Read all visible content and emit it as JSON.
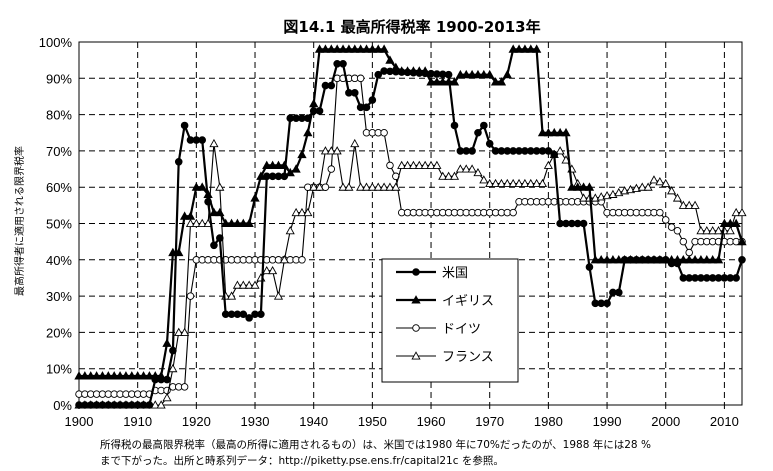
{
  "chart_data": {
    "type": "line",
    "title": "図14.1 最高所得税率 1900-2013年",
    "ylabel": "最高所得者に適用される限界税率",
    "xlim": [
      1900,
      2013
    ],
    "ylim": [
      0,
      100
    ],
    "x_ticks": [
      1900,
      1910,
      1920,
      1930,
      1940,
      1950,
      1960,
      1970,
      1980,
      1990,
      2000,
      2010
    ],
    "y_ticks": [
      "0%",
      "10%",
      "20%",
      "30%",
      "40%",
      "50%",
      "60%",
      "70%",
      "80%",
      "90%",
      "100%"
    ],
    "grid": "dashed",
    "legend_position": "center-right",
    "series": [
      {
        "name": "米国",
        "marker": "filled-circle",
        "color": "#000000",
        "points": [
          [
            1900,
            0
          ],
          [
            1912,
            0
          ],
          [
            1913,
            7
          ],
          [
            1915,
            7
          ],
          [
            1916,
            15
          ],
          [
            1917,
            67
          ],
          [
            1918,
            77
          ],
          [
            1919,
            73
          ],
          [
            1921,
            73
          ],
          [
            1922,
            56
          ],
          [
            1923,
            44
          ],
          [
            1924,
            46
          ],
          [
            1925,
            25
          ],
          [
            1928,
            25
          ],
          [
            1929,
            24
          ],
          [
            1930,
            25
          ],
          [
            1931,
            25
          ],
          [
            1932,
            63
          ],
          [
            1935,
            63
          ],
          [
            1936,
            79
          ],
          [
            1939,
            79
          ],
          [
            1940,
            81
          ],
          [
            1941,
            81
          ],
          [
            1942,
            88
          ],
          [
            1943,
            88
          ],
          [
            1944,
            94
          ],
          [
            1945,
            94
          ],
          [
            1946,
            86
          ],
          [
            1947,
            86
          ],
          [
            1948,
            82
          ],
          [
            1949,
            82
          ],
          [
            1950,
            84
          ],
          [
            1951,
            91
          ],
          [
            1952,
            92
          ],
          [
            1963,
            91
          ],
          [
            1964,
            77
          ],
          [
            1965,
            70
          ],
          [
            1967,
            70
          ],
          [
            1968,
            75
          ],
          [
            1969,
            77
          ],
          [
            1970,
            72
          ],
          [
            1971,
            70
          ],
          [
            1980,
            70
          ],
          [
            1981,
            69
          ],
          [
            1982,
            50
          ],
          [
            1986,
            50
          ],
          [
            1987,
            38
          ],
          [
            1988,
            28
          ],
          [
            1990,
            28
          ],
          [
            1991,
            31
          ],
          [
            1992,
            31
          ],
          [
            1993,
            40
          ],
          [
            2000,
            40
          ],
          [
            2001,
            39
          ],
          [
            2002,
            39
          ],
          [
            2003,
            35
          ],
          [
            2012,
            35
          ],
          [
            2013,
            40
          ]
        ]
      },
      {
        "name": "イギリス",
        "marker": "filled-triangle",
        "color": "#000000",
        "points": [
          [
            1900,
            8
          ],
          [
            1909,
            8
          ],
          [
            1910,
            8
          ],
          [
            1913,
            8
          ],
          [
            1914,
            8
          ],
          [
            1915,
            17
          ],
          [
            1916,
            42
          ],
          [
            1917,
            42
          ],
          [
            1918,
            52
          ],
          [
            1919,
            52
          ],
          [
            1920,
            60
          ],
          [
            1921,
            60
          ],
          [
            1922,
            58
          ],
          [
            1923,
            53
          ],
          [
            1924,
            53
          ],
          [
            1925,
            50
          ],
          [
            1929,
            50
          ],
          [
            1930,
            57
          ],
          [
            1931,
            63
          ],
          [
            1932,
            66
          ],
          [
            1935,
            66
          ],
          [
            1936,
            64
          ],
          [
            1937,
            65
          ],
          [
            1938,
            69
          ],
          [
            1939,
            75
          ],
          [
            1940,
            83
          ],
          [
            1941,
            98
          ],
          [
            1952,
            98
          ],
          [
            1953,
            95
          ],
          [
            1954,
            93
          ],
          [
            1955,
            92
          ],
          [
            1959,
            92
          ],
          [
            1960,
            89
          ],
          [
            1964,
            89
          ],
          [
            1965,
            91
          ],
          [
            1970,
            91
          ],
          [
            1971,
            89
          ],
          [
            1972,
            89
          ],
          [
            1973,
            91
          ],
          [
            1974,
            98
          ],
          [
            1978,
            98
          ],
          [
            1979,
            75
          ],
          [
            1983,
            75
          ],
          [
            1984,
            60
          ],
          [
            1987,
            60
          ],
          [
            1988,
            40
          ],
          [
            2009,
            40
          ],
          [
            2010,
            50
          ],
          [
            2012,
            50
          ],
          [
            2013,
            45
          ]
        ]
      },
      {
        "name": "ドイツ",
        "marker": "open-circle",
        "color": "#000000",
        "points": [
          [
            1900,
            3
          ],
          [
            1912,
            3
          ],
          [
            1913,
            4
          ],
          [
            1915,
            4
          ],
          [
            1916,
            5
          ],
          [
            1917,
            5
          ],
          [
            1918,
            5
          ],
          [
            1919,
            30
          ],
          [
            1920,
            40
          ],
          [
            1938,
            40
          ],
          [
            1939,
            60
          ],
          [
            1942,
            60
          ],
          [
            1943,
            65
          ],
          [
            1944,
            90
          ],
          [
            1948,
            90
          ],
          [
            1949,
            75
          ],
          [
            1952,
            75
          ],
          [
            1953,
            66
          ],
          [
            1954,
            63
          ],
          [
            1955,
            53
          ],
          [
            1974,
            53
          ],
          [
            1975,
            56
          ],
          [
            1989,
            56
          ],
          [
            1990,
            53
          ],
          [
            1999,
            53
          ],
          [
            2000,
            51
          ],
          [
            2001,
            49
          ],
          [
            2002,
            48
          ],
          [
            2003,
            45
          ],
          [
            2004,
            42
          ],
          [
            2005,
            45
          ],
          [
            2013,
            45
          ]
        ]
      },
      {
        "name": "フランス",
        "marker": "open-triangle",
        "color": "#000000",
        "points": [
          [
            1900,
            0
          ],
          [
            1914,
            0
          ],
          [
            1915,
            2
          ],
          [
            1916,
            10
          ],
          [
            1917,
            20
          ],
          [
            1918,
            20
          ],
          [
            1919,
            50
          ],
          [
            1920,
            50
          ],
          [
            1921,
            50
          ],
          [
            1922,
            50
          ],
          [
            1923,
            72
          ],
          [
            1924,
            60
          ],
          [
            1925,
            30
          ],
          [
            1926,
            30
          ],
          [
            1927,
            33
          ],
          [
            1930,
            33
          ],
          [
            1932,
            37
          ],
          [
            1933,
            37
          ],
          [
            1934,
            30
          ],
          [
            1935,
            40
          ],
          [
            1936,
            48
          ],
          [
            1937,
            53
          ],
          [
            1939,
            53
          ],
          [
            1940,
            60
          ],
          [
            1941,
            60
          ],
          [
            1942,
            70
          ],
          [
            1944,
            70
          ],
          [
            1945,
            60
          ],
          [
            1946,
            60
          ],
          [
            1947,
            72
          ],
          [
            1948,
            60
          ],
          [
            1954,
            60
          ],
          [
            1955,
            66
          ],
          [
            1961,
            66
          ],
          [
            1962,
            63
          ],
          [
            1964,
            63
          ],
          [
            1965,
            65
          ],
          [
            1967,
            65
          ],
          [
            1968,
            64
          ],
          [
            1969,
            62
          ],
          [
            1970,
            61
          ],
          [
            1979,
            61
          ],
          [
            1980,
            66
          ],
          [
            1981,
            69
          ],
          [
            1982,
            70
          ],
          [
            1984,
            65
          ],
          [
            1986,
            57
          ],
          [
            1988,
            57
          ],
          [
            1991,
            58
          ],
          [
            1993,
            59
          ],
          [
            1996,
            60
          ],
          [
            1997,
            60
          ],
          [
            1998,
            62
          ],
          [
            2000,
            61
          ],
          [
            2001,
            59
          ],
          [
            2002,
            57
          ],
          [
            2003,
            55
          ],
          [
            2005,
            55
          ],
          [
            2006,
            48
          ],
          [
            2010,
            48
          ],
          [
            2011,
            48
          ],
          [
            2012,
            53
          ],
          [
            2013,
            53
          ]
        ]
      }
    ]
  },
  "caption": {
    "line1": "所得税の最高限界税率（最高の所得に適用されるもの）は、米国では1980 年に70%だったのが、1988 年には28 %",
    "line2": "まで下がった。出所と時系列データ：http://piketty.pse.ens.fr/capital21c を参照。"
  }
}
